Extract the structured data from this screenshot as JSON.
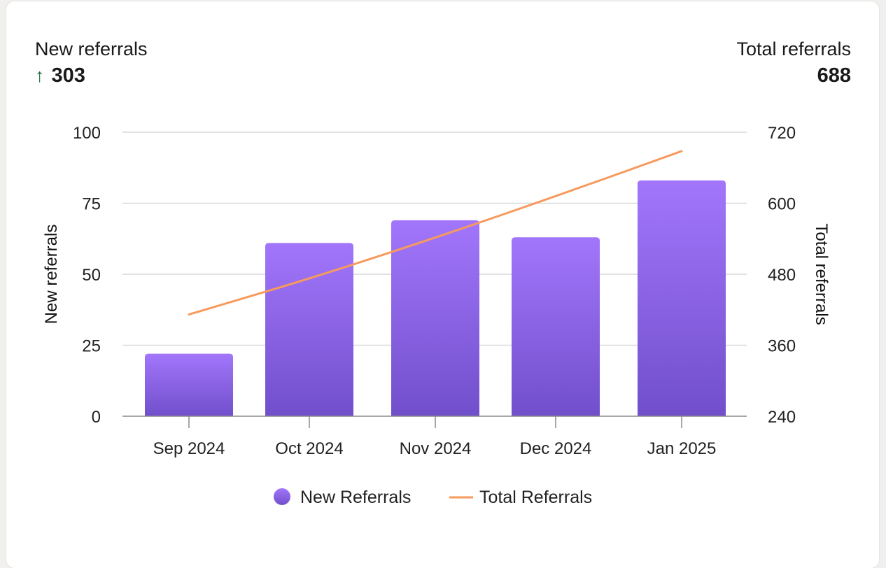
{
  "header": {
    "left_label": "New referrals",
    "left_value": "303",
    "left_arrow": "↑",
    "right_label": "Total referrals",
    "right_value": "688"
  },
  "colors": {
    "bar_top": "#a276fb",
    "bar_bottom": "#714fcb",
    "line": "#f79a5e",
    "grid": "#d9d9d9",
    "trend_up": "#1d6b35"
  },
  "chart_data": {
    "type": "bar",
    "categories": [
      "Sep 2024",
      "Oct 2024",
      "Nov 2024",
      "Dec 2024",
      "Jan 2025"
    ],
    "series": [
      {
        "name": "New Referrals",
        "type": "bar",
        "axis": "left",
        "values": [
          22,
          61,
          69,
          63,
          83
        ]
      },
      {
        "name": "Total Referrals",
        "type": "line",
        "axis": "right",
        "values": [
          412,
          473,
          542,
          612,
          688
        ]
      }
    ],
    "ylabel": "New referrals",
    "ylim": [
      0,
      100
    ],
    "yticks": [
      "0",
      "25",
      "50",
      "75",
      "100"
    ],
    "y2label": "Total referrals",
    "y2lim": [
      240,
      720
    ],
    "y2ticks": [
      "240",
      "360",
      "480",
      "600",
      "720"
    ],
    "grid": true,
    "legend_position": "bottom"
  }
}
